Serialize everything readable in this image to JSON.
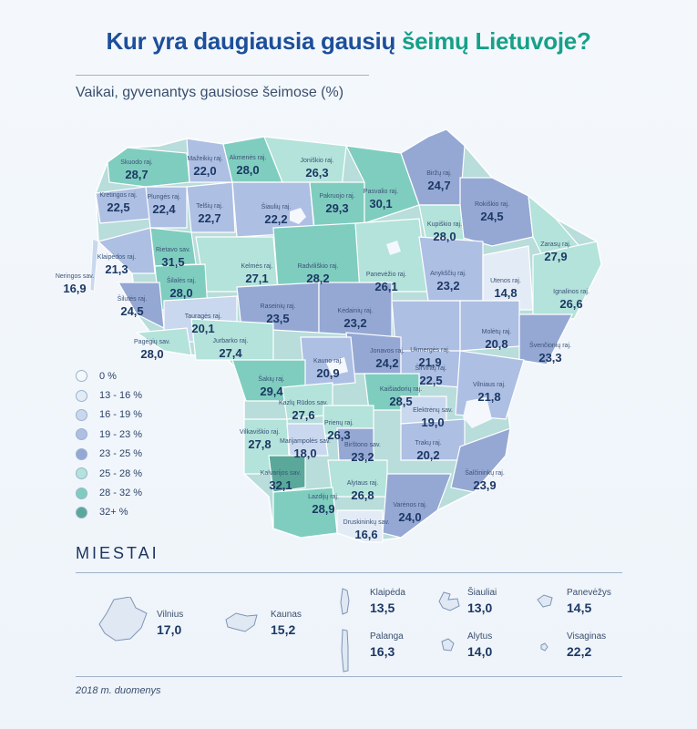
{
  "title_part1": "Kur yra daugiausia gausių ",
  "title_part2": "šeimų Lietuvoje?",
  "subtitle": "Vaikai, gyvenantys gausiose šeimose (%)",
  "colors": {
    "title_blue": "#1d4f9a",
    "title_teal": "#17a08a",
    "c0": "#f4f8fc",
    "c13_16": "#e3ecf6",
    "c16_19": "#c9d8ee",
    "c19_23": "#aebfe4",
    "c23_25": "#95a8d4",
    "c25_28": "#b3e3da",
    "c28_32": "#7fcdbf",
    "c32": "#5aa89a"
  },
  "legend": [
    {
      "label": "0 %",
      "color": "#f4f8fc"
    },
    {
      "label": "13 - 16 %",
      "color": "#e3ecf6"
    },
    {
      "label": "16 - 19 %",
      "color": "#c9d8ee"
    },
    {
      "label": "19 - 23 %",
      "color": "#aebfe4"
    },
    {
      "label": "23 - 25 %",
      "color": "#95a8d4"
    },
    {
      "label": "25 - 28 %",
      "color": "#b3e3da"
    },
    {
      "label": "28 - 32 %",
      "color": "#7fcdbf"
    },
    {
      "label": "32+ %",
      "color": "#5aa89a"
    }
  ],
  "regions": [
    {
      "name": "Skuodo raj.",
      "value": "28,7"
    },
    {
      "name": "Mažeikių raj.",
      "value": "22,0"
    },
    {
      "name": "Akmenės raj.",
      "value": "28,0"
    },
    {
      "name": "Joniškio raj.",
      "value": "26,3"
    },
    {
      "name": "Biržų raj.",
      "value": "24,7"
    },
    {
      "name": "Kretingos raj.",
      "value": "22,5"
    },
    {
      "name": "Plungės raj.",
      "value": "22,4"
    },
    {
      "name": "Telšių raj.",
      "value": "22,7"
    },
    {
      "name": "Šiaulių raj.",
      "value": "22,2"
    },
    {
      "name": "Pakruojo raj.",
      "value": "29,3"
    },
    {
      "name": "Pasvalio raj.",
      "value": "30,1"
    },
    {
      "name": "Rokiškio raj.",
      "value": "24,5"
    },
    {
      "name": "Kupiškio raj.",
      "value": "28,0"
    },
    {
      "name": "Rietavo sav.",
      "value": "31,5"
    },
    {
      "name": "Klaipėdos raj.",
      "value": "21,3"
    },
    {
      "name": "Zarasų raj.",
      "value": "27,9"
    },
    {
      "name": "Kelmės raj.",
      "value": "27,1"
    },
    {
      "name": "Radviliškio raj.",
      "value": "28,2"
    },
    {
      "name": "Panevėžio raj.",
      "value": "26,1"
    },
    {
      "name": "Anykščių raj.",
      "value": "23,2"
    },
    {
      "name": "Neringos sav.",
      "value": "16,9"
    },
    {
      "name": "Šilalės raj.",
      "value": "28,0"
    },
    {
      "name": "Utenos raj.",
      "value": "14,8"
    },
    {
      "name": "Ignalinos raj.",
      "value": "26,6"
    },
    {
      "name": "Šilutės raj.",
      "value": "24,5"
    },
    {
      "name": "Raseinių raj.",
      "value": "23,5"
    },
    {
      "name": "Kėdainių raj.",
      "value": "23,2"
    },
    {
      "name": "Tauragės raj.",
      "value": "20,1"
    },
    {
      "name": "Ukmergės raj.",
      "value": "21,9"
    },
    {
      "name": "Molėtų raj.",
      "value": "20,8"
    },
    {
      "name": "Švenčionių raj.",
      "value": "23,3"
    },
    {
      "name": "Pagėgių sav.",
      "value": "28,0"
    },
    {
      "name": "Jurbarko raj.",
      "value": "27,4"
    },
    {
      "name": "Jonavos raj.",
      "value": "24,2"
    },
    {
      "name": "Kauno raj.",
      "value": "20,9"
    },
    {
      "name": "Širvintų raj.",
      "value": "22,5"
    },
    {
      "name": "Šakių raj.",
      "value": "29,4"
    },
    {
      "name": "Vilniaus raj.",
      "value": "21,8"
    },
    {
      "name": "Kaišiadorių raj.",
      "value": "28,5"
    },
    {
      "name": "Kazlų Rūdos sav.",
      "value": "27,6"
    },
    {
      "name": "Elektrėnų sav.",
      "value": "19,0"
    },
    {
      "name": "Prienų raj.",
      "value": "26,3"
    },
    {
      "name": "Vilkaviškio raj.",
      "value": "27,8"
    },
    {
      "name": "Marijampolės sav.",
      "value": "18,0"
    },
    {
      "name": "Birštono sav.",
      "value": "23,2"
    },
    {
      "name": "Trakų raj.",
      "value": "20,2"
    },
    {
      "name": "Kalvarijos sav.",
      "value": "32,1"
    },
    {
      "name": "Šalčininkų raj.",
      "value": "23,9"
    },
    {
      "name": "Alytaus raj.",
      "value": "26,8"
    },
    {
      "name": "Lazdijų raj.",
      "value": "28,9"
    },
    {
      "name": "Varėnos raj.",
      "value": "24,0"
    },
    {
      "name": "Druskininkų sav.",
      "value": "16,6"
    }
  ],
  "cities_heading": "MIESTAI",
  "cities": [
    {
      "name": "Vilnius",
      "value": "17,0"
    },
    {
      "name": "Kaunas",
      "value": "15,2"
    },
    {
      "name": "Klaipėda",
      "value": "13,5"
    },
    {
      "name": "Palanga",
      "value": "16,3"
    },
    {
      "name": "Šiauliai",
      "value": "13,0"
    },
    {
      "name": "Alytus",
      "value": "14,0"
    },
    {
      "name": "Panevėžys",
      "value": "14,5"
    },
    {
      "name": "Visaginas",
      "value": "22,2"
    }
  ],
  "note": "2018 m. duomenys"
}
